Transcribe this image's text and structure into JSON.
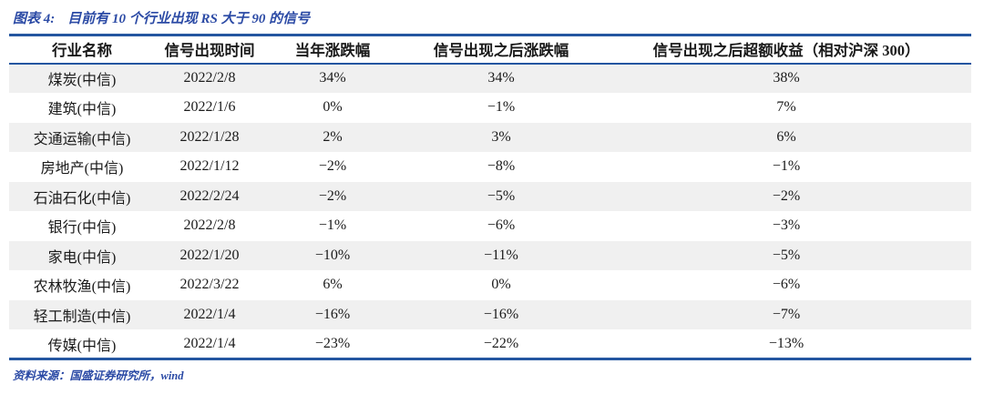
{
  "colors": {
    "accent": "#2456a0",
    "title_blue": "#2b4aa5",
    "row_stripe": "#f0f0f0",
    "text": "#1a1a1a"
  },
  "figure": {
    "label": "图表 4:",
    "title": "目前有 10 个行业出现 RS 大于 90 的信号",
    "source": "资料来源：国盛证券研究所，wind"
  },
  "table": {
    "headers": [
      "行业名称",
      "信号出现时间",
      "当年涨跌幅",
      "信号出现之后涨跌幅",
      "信号出现之后超额收益（相对沪深 300）"
    ],
    "rows": [
      {
        "industry": "煤炭(中信)",
        "signal_date": "2022/2/8",
        "ytd_change": "34%",
        "post_signal_change": "34%",
        "excess_return": "38%"
      },
      {
        "industry": "建筑(中信)",
        "signal_date": "2022/1/6",
        "ytd_change": "0%",
        "post_signal_change": "−1%",
        "excess_return": "7%"
      },
      {
        "industry": "交通运输(中信)",
        "signal_date": "2022/1/28",
        "ytd_change": "2%",
        "post_signal_change": "3%",
        "excess_return": "6%"
      },
      {
        "industry": "房地产(中信)",
        "signal_date": "2022/1/12",
        "ytd_change": "−2%",
        "post_signal_change": "−8%",
        "excess_return": "−1%"
      },
      {
        "industry": "石油石化(中信)",
        "signal_date": "2022/2/24",
        "ytd_change": "−2%",
        "post_signal_change": "−5%",
        "excess_return": "−2%"
      },
      {
        "industry": "银行(中信)",
        "signal_date": "2022/2/8",
        "ytd_change": "−1%",
        "post_signal_change": "−6%",
        "excess_return": "−3%"
      },
      {
        "industry": "家电(中信)",
        "signal_date": "2022/1/20",
        "ytd_change": "−10%",
        "post_signal_change": "−11%",
        "excess_return": "−5%"
      },
      {
        "industry": "农林牧渔(中信)",
        "signal_date": "2022/3/22",
        "ytd_change": "6%",
        "post_signal_change": "0%",
        "excess_return": "−6%"
      },
      {
        "industry": "轻工制造(中信)",
        "signal_date": "2022/1/4",
        "ytd_change": "−16%",
        "post_signal_change": "−16%",
        "excess_return": "−7%"
      },
      {
        "industry": "传媒(中信)",
        "signal_date": "2022/1/4",
        "ytd_change": "−23%",
        "post_signal_change": "−22%",
        "excess_return": "−13%"
      }
    ]
  }
}
